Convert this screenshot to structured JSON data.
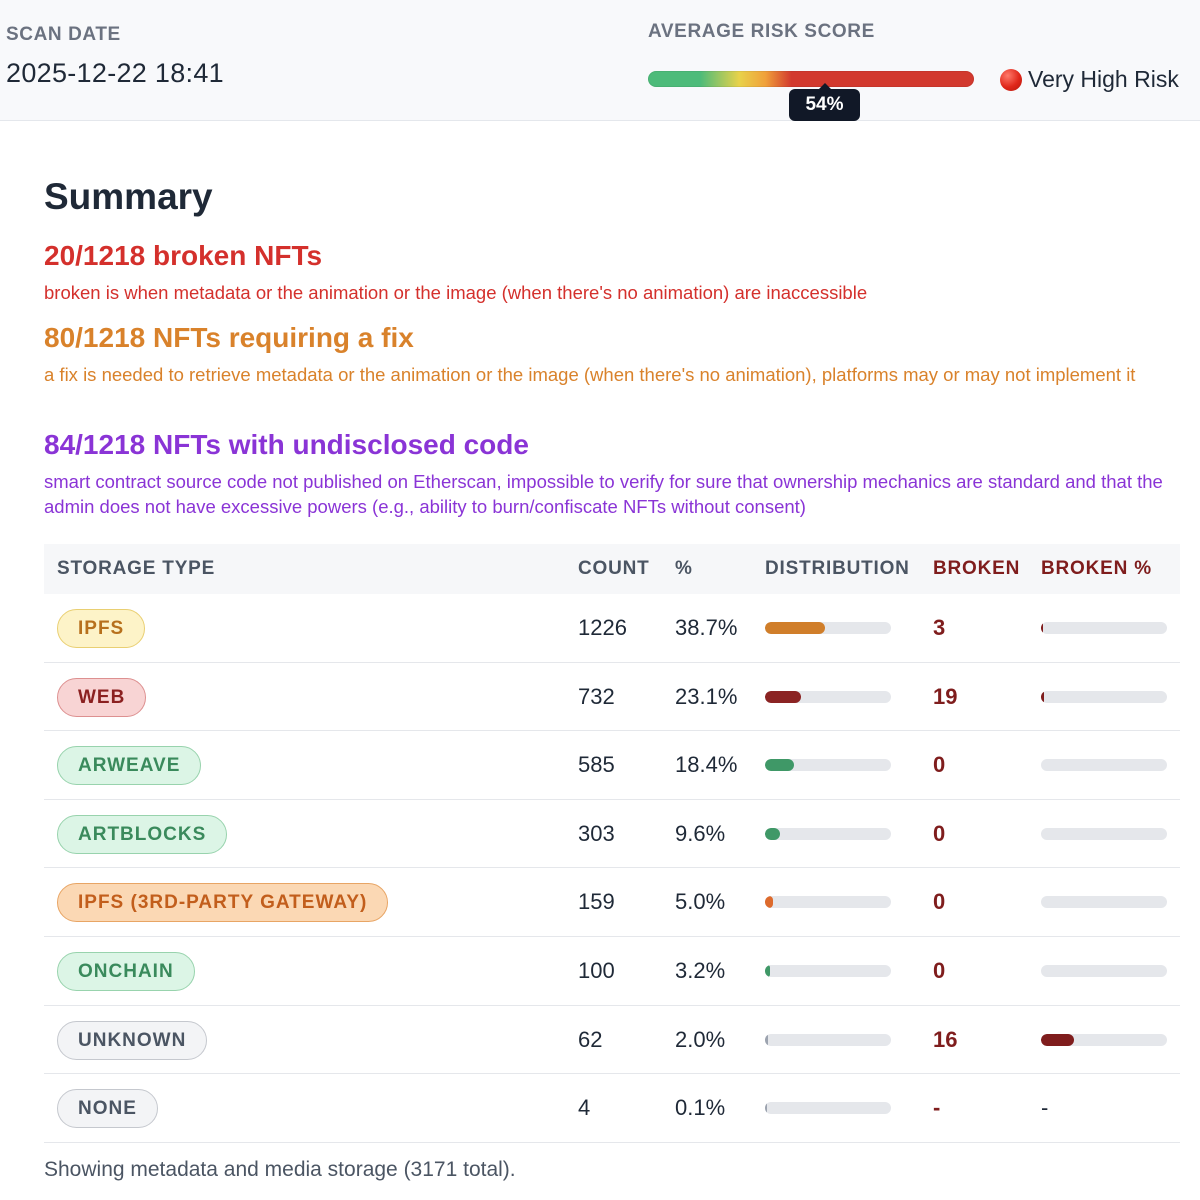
{
  "header": {
    "scan_label": "SCAN DATE",
    "scan_date": "2025-12-22 18:41",
    "risk_label": "AVERAGE RISK SCORE",
    "risk_score_text": "54%",
    "risk_score": 0.54,
    "risk_level": "Very High Risk",
    "risk_icon": "red-circle-icon"
  },
  "summary": {
    "title": "Summary",
    "findings": [
      {
        "title": "20/1218 broken NFTs",
        "description": "broken is when metadata or the animation or the image (when there's no animation) are inaccessible",
        "color": "#d4302c"
      },
      {
        "title": "80/1218 NFTs requiring a fix",
        "description": "a fix is needed to retrieve metadata or the animation or the image (when there's no animation), platforms may or may not implement it",
        "color": "#d9822b"
      },
      {
        "title": "84/1218 NFTs with undisclosed code",
        "description": "smart contract source code not published on Etherscan, impossible to verify for sure that ownership mechanics are standard and that the admin does not have excessive powers (e.g., ability to burn/confiscate NFTs without consent)",
        "color": "#8a34d6"
      }
    ]
  },
  "table": {
    "headers": {
      "storage_type": "STORAGE TYPE",
      "count": "COUNT",
      "percent": "%",
      "distribution": "DISTRIBUTION",
      "broken": "BROKEN",
      "broken_percent": "BROKEN %"
    },
    "rows": [
      {
        "type": "IPFS",
        "count": "1226",
        "percent": "38.7%",
        "distribution": 0.387,
        "broken": "3",
        "broken_share": 0.0025,
        "broken_percent_text": "",
        "badge_bg": "#fdf3c8",
        "badge_border": "#e9cf72",
        "badge_text": "#b7701c",
        "bar_color": "#d07e2a"
      },
      {
        "type": "WEB",
        "count": "732",
        "percent": "23.1%",
        "distribution": 0.231,
        "broken": "19",
        "broken_share": 0.026,
        "broken_percent_text": "",
        "badge_bg": "#f8d4d4",
        "badge_border": "#dd9090",
        "badge_text": "#8b2020",
        "bar_color": "#8b2323"
      },
      {
        "type": "ARWEAVE",
        "count": "585",
        "percent": "18.4%",
        "distribution": 0.184,
        "broken": "0",
        "broken_share": 0,
        "broken_percent_text": "",
        "badge_bg": "#dcf5e6",
        "badge_border": "#98d3ad",
        "badge_text": "#3a8a5c",
        "bar_color": "#3f9867"
      },
      {
        "type": "ARTBLOCKS",
        "count": "303",
        "percent": "9.6%",
        "distribution": 0.096,
        "broken": "0",
        "broken_share": 0,
        "broken_percent_text": "",
        "badge_bg": "#dcf5e6",
        "badge_border": "#98d3ad",
        "badge_text": "#3a8a5c",
        "bar_color": "#3f9867"
      },
      {
        "type": "IPFS (3RD-PARTY GATEWAY)",
        "count": "159",
        "percent": "5.0%",
        "distribution": 0.05,
        "broken": "0",
        "broken_share": 0,
        "broken_percent_text": "",
        "badge_bg": "#fbd8b4",
        "badge_border": "#e8a565",
        "badge_text": "#c25e1c",
        "bar_color": "#dd6a2c"
      },
      {
        "type": "ONCHAIN",
        "count": "100",
        "percent": "3.2%",
        "distribution": 0.032,
        "broken": "0",
        "broken_share": 0,
        "broken_percent_text": "",
        "badge_bg": "#dcf5e6",
        "badge_border": "#98d3ad",
        "badge_text": "#3a8a5c",
        "bar_color": "#3f9867"
      },
      {
        "type": "UNKNOWN",
        "count": "62",
        "percent": "2.0%",
        "distribution": 0.02,
        "broken": "16",
        "broken_share": 0.258,
        "broken_percent_text": "",
        "badge_bg": "#f3f4f6",
        "badge_border": "#c5c8ce",
        "badge_text": "#4b5563",
        "bar_color": "#9ca3af"
      },
      {
        "type": "NONE",
        "count": "4",
        "percent": "0.1%",
        "distribution": 0.001,
        "broken": "-",
        "broken_share": null,
        "broken_percent_text": "-",
        "badge_bg": "#f3f4f6",
        "badge_border": "#c5c8ce",
        "badge_text": "#4b5563",
        "bar_color": "#9ca3af"
      }
    ],
    "broken_bar_color": "#7f1d1d"
  },
  "footer": "Showing metadata and media storage (3171 total)."
}
